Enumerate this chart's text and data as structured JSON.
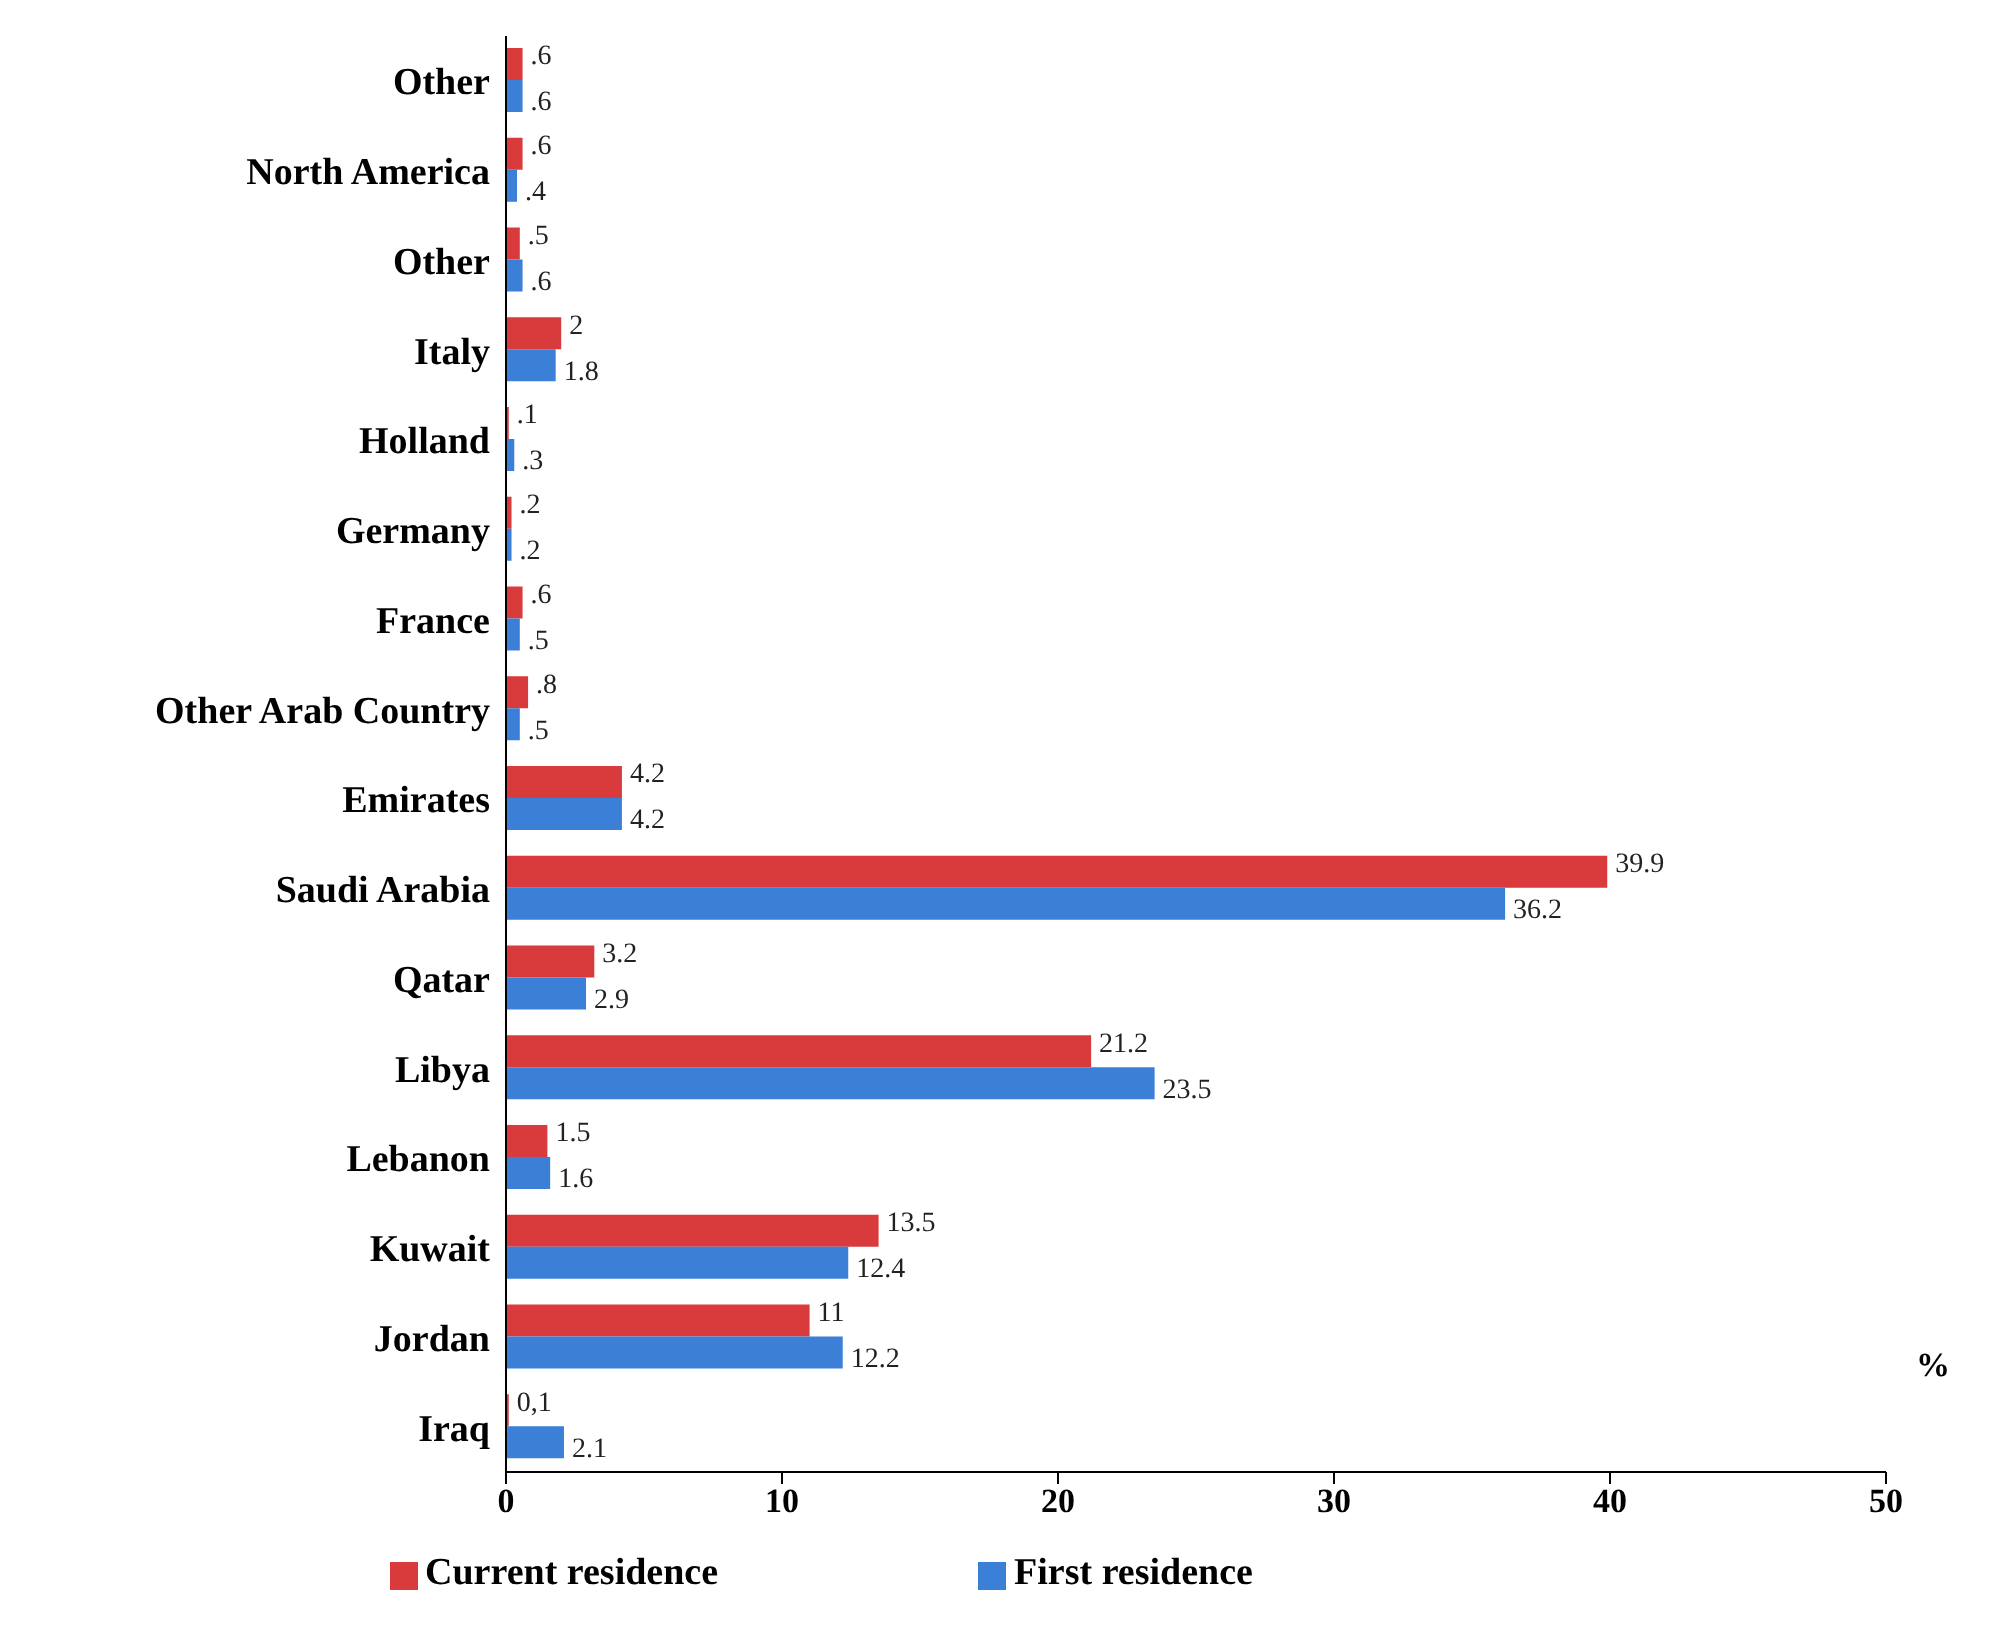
{
  "chart_data": {
    "type": "bar",
    "orientation": "horizontal",
    "xlabel": "%",
    "categories": [
      "Other",
      "North America",
      "Other",
      "Italy",
      "Holland",
      "Germany",
      "France",
      "Other Arab Country",
      "Emirates",
      "Saudi Arabia",
      "Qatar",
      "Libya",
      "Lebanon",
      "Kuwait",
      "Jordan",
      "Iraq"
    ],
    "series": [
      {
        "name": "Current residence",
        "color": "#d93a3c",
        "values": [
          0.6,
          0.6,
          0.5,
          2,
          0.1,
          0.2,
          0.6,
          0.8,
          4.2,
          39.9,
          3.2,
          21.2,
          1.5,
          13.5,
          11,
          0.1
        ],
        "value_labels": [
          ".6",
          ".6",
          ".5",
          "2",
          ".1",
          ".2",
          ".6",
          ".8",
          "4.2",
          "39.9",
          "3.2",
          "21.2",
          "1.5",
          "13.5",
          "11",
          "0,1"
        ]
      },
      {
        "name": "First residence",
        "color": "#3b7fd6",
        "values": [
          0.6,
          0.4,
          0.6,
          1.8,
          0.3,
          0.2,
          0.5,
          0.5,
          4.2,
          36.2,
          2.9,
          23.5,
          1.6,
          12.4,
          12.2,
          2.1
        ],
        "value_labels": [
          ".6",
          ".4",
          ".6",
          "1.8",
          ".3",
          ".2",
          ".5",
          ".5",
          "4.2",
          "36.2",
          "2.9",
          "23.5",
          "1.6",
          "12.4",
          "12.2",
          "2.1"
        ]
      }
    ],
    "xlim": [
      0,
      50
    ],
    "xticks": [
      0,
      10,
      20,
      30,
      40,
      50
    ],
    "grid": false,
    "legend": "bottom"
  }
}
